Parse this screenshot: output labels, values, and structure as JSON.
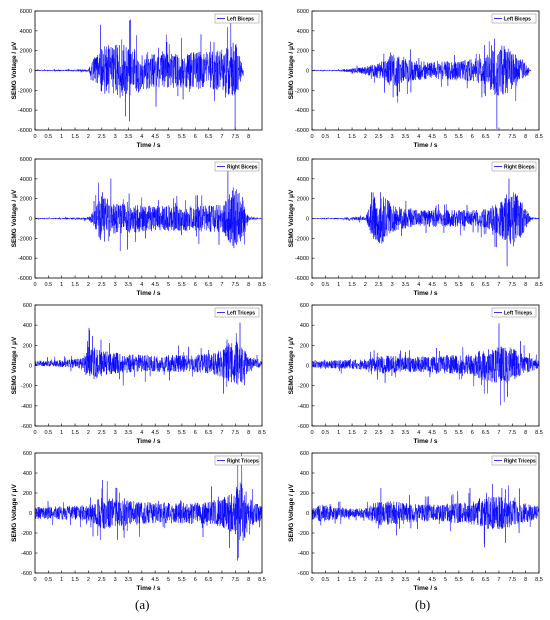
{
  "figure": {
    "column_labels": [
      "(a)",
      "(b)"
    ]
  },
  "chart_data": [
    {
      "type": "line",
      "column": "a",
      "row": 0,
      "series": [
        {
          "name": "Left Biceps",
          "color": "#0000ff"
        }
      ],
      "legend": "top-right",
      "xlabel": "Time / s",
      "ylabel": "SEMG Voltage / μV",
      "xlim": [
        0,
        8.5
      ],
      "ylim": [
        -6000,
        6000
      ],
      "xticks": [
        "0",
        "0.5",
        "1",
        "1.5",
        "2",
        "2.5",
        "3",
        "3.5",
        "4",
        "4.5",
        "5",
        "5.5",
        "6",
        "6.5",
        "7",
        "7.5",
        "8"
      ],
      "yticks": [
        "-6000",
        "-4000",
        "-2000",
        "0",
        "2000",
        "4000",
        "6000"
      ],
      "envelope": {
        "x": [
          0,
          1,
          2,
          2.2,
          2.5,
          3,
          3.5,
          4,
          4.5,
          5,
          5.5,
          6,
          6.5,
          7,
          7.5,
          7.8,
          8.5
        ],
        "amp": [
          60,
          80,
          150,
          1500,
          2800,
          3200,
          3000,
          2500,
          2000,
          2100,
          2000,
          2300,
          2300,
          2500,
          3500,
          300,
          50
        ]
      },
      "active": [
        0,
        7.8
      ]
    },
    {
      "type": "line",
      "column": "b",
      "row": 0,
      "series": [
        {
          "name": "Left Biceps",
          "color": "#0000ff"
        }
      ],
      "legend": "top-right",
      "xlabel": "Time / s",
      "ylabel": "SEMG Voltage / μV",
      "xlim": [
        0,
        8.5
      ],
      "ylim": [
        -6000,
        6000
      ],
      "xticks": [
        "0",
        "0.5",
        "1",
        "1.5",
        "2",
        "2.5",
        "3",
        "3.5",
        "4",
        "4.5",
        "5",
        "5.5",
        "6",
        "6.5",
        "7",
        "7.5",
        "8",
        "8.5"
      ],
      "yticks": [
        "-6000",
        "-4000",
        "-2000",
        "0",
        "2000",
        "4000",
        "6000"
      ],
      "envelope": {
        "x": [
          0,
          1,
          1.8,
          2.5,
          3,
          3.5,
          4,
          4.5,
          5,
          5.5,
          6,
          6.5,
          7,
          7.5,
          8,
          8.2
        ],
        "amp": [
          60,
          80,
          350,
          900,
          2000,
          1400,
          1200,
          1000,
          1100,
          1100,
          1400,
          1700,
          3500,
          2200,
          900,
          80
        ]
      },
      "active": [
        0,
        8.2
      ]
    },
    {
      "type": "line",
      "column": "a",
      "row": 1,
      "series": [
        {
          "name": "Right Biceps",
          "color": "#0000ff"
        }
      ],
      "legend": "top-right",
      "xlabel": "Time / s",
      "ylabel": "SEMG Voltage / μV",
      "xlim": [
        0,
        8.5
      ],
      "ylim": [
        -6000,
        6000
      ],
      "xticks": [
        "0",
        "0.5",
        "1",
        "1.5",
        "2",
        "2.5",
        "3",
        "3.5",
        "4",
        "4.5",
        "5",
        "5.5",
        "6",
        "6.5",
        "7",
        "7.5",
        "8",
        "8.5"
      ],
      "yticks": [
        "-6000",
        "-4000",
        "-2000",
        "0",
        "2000",
        "4000",
        "6000"
      ],
      "envelope": {
        "x": [
          0,
          1,
          2,
          2.2,
          2.5,
          3,
          3.5,
          4,
          4.5,
          5,
          5.5,
          6,
          6.5,
          7,
          7.3,
          7.5,
          7.8,
          8,
          8.5
        ],
        "amp": [
          60,
          80,
          150,
          900,
          3000,
          1800,
          1700,
          1600,
          1500,
          1500,
          1500,
          1500,
          1600,
          1600,
          3000,
          4000,
          2500,
          200,
          60
        ]
      },
      "active": [
        0,
        8.5
      ]
    },
    {
      "type": "line",
      "column": "b",
      "row": 1,
      "series": [
        {
          "name": "Right Biceps",
          "color": "#0000ff"
        }
      ],
      "legend": "top-right",
      "xlabel": "Time / s",
      "ylabel": "SEMG Voltage / μV",
      "xlim": [
        0,
        8.5
      ],
      "ylim": [
        -6000,
        6000
      ],
      "xticks": [
        "0",
        "0.5",
        "1",
        "1.5",
        "2",
        "2.5",
        "3",
        "3.5",
        "4",
        "4.5",
        "5",
        "5.5",
        "6",
        "6.5",
        "7",
        "7.5",
        "8",
        "8.5"
      ],
      "yticks": [
        "-6000",
        "-4000",
        "-2000",
        "0",
        "2000",
        "4000",
        "6000"
      ],
      "envelope": {
        "x": [
          0,
          1,
          2,
          2.3,
          2.6,
          3,
          3.5,
          4,
          4.5,
          5,
          5.5,
          6,
          6.5,
          7,
          7.5,
          7.8,
          8.2,
          8.5
        ],
        "amp": [
          60,
          80,
          250,
          2500,
          3200,
          1600,
          1200,
          1000,
          1000,
          1000,
          1000,
          1000,
          1100,
          2000,
          3500,
          2500,
          150,
          60
        ]
      },
      "active": [
        0,
        8.5
      ]
    },
    {
      "type": "line",
      "column": "a",
      "row": 2,
      "series": [
        {
          "name": "Left Triceps",
          "color": "#0000ff"
        }
      ],
      "legend": "top-right",
      "xlabel": "Time / s",
      "ylabel": "SEMG Voltage / μV",
      "xlim": [
        0,
        8.5
      ],
      "ylim": [
        -600,
        600
      ],
      "xticks": [
        "0",
        "0.5",
        "1",
        "1.5",
        "2",
        "2.5",
        "3",
        "3.5",
        "4",
        "4.5",
        "5",
        "5.5",
        "6",
        "6.5",
        "7",
        "7.5",
        "8",
        "8.5"
      ],
      "yticks": [
        "-600",
        "-400",
        "-200",
        "0",
        "200",
        "400",
        "600"
      ],
      "offset": 20,
      "envelope": {
        "x": [
          0,
          1,
          1.8,
          2,
          2.5,
          3,
          3.5,
          4,
          4.5,
          5,
          5.5,
          6,
          6.5,
          7,
          7.5,
          7.8,
          8,
          8.5
        ],
        "amp": [
          30,
          40,
          60,
          220,
          150,
          130,
          110,
          100,
          100,
          100,
          100,
          100,
          120,
          160,
          280,
          220,
          80,
          40
        ]
      },
      "active": [
        0,
        8.5
      ]
    },
    {
      "type": "line",
      "column": "b",
      "row": 2,
      "series": [
        {
          "name": "Left Triceps",
          "color": "#0000ff"
        }
      ],
      "legend": "top-right",
      "xlabel": "Time / s",
      "ylabel": "SEMG Voltage / μV",
      "xlim": [
        0,
        8.5
      ],
      "ylim": [
        -600,
        600
      ],
      "xticks": [
        "0",
        "0.5",
        "1",
        "1.5",
        "2",
        "2.5",
        "3",
        "3.5",
        "4",
        "4.5",
        "5",
        "5.5",
        "6",
        "6.5",
        "7",
        "7.5",
        "8",
        "8.5"
      ],
      "yticks": [
        "-600",
        "-400",
        "-200",
        "0",
        "200",
        "400",
        "600"
      ],
      "offset": 10,
      "envelope": {
        "x": [
          0,
          1,
          2,
          2.5,
          3,
          3.5,
          4,
          4.5,
          5,
          5.5,
          6,
          6.5,
          7,
          7.5,
          8,
          8.5
        ],
        "amp": [
          40,
          50,
          60,
          110,
          100,
          90,
          90,
          90,
          110,
          110,
          120,
          200,
          220,
          200,
          100,
          50
        ]
      },
      "active": [
        0,
        8.5
      ]
    },
    {
      "type": "line",
      "column": "a",
      "row": 3,
      "series": [
        {
          "name": "Right Triceps",
          "color": "#0000ff"
        }
      ],
      "legend": "top-right",
      "xlabel": "Time / s",
      "ylabel": "SEMG Voltage / μV",
      "xlim": [
        0,
        8.5
      ],
      "ylim": [
        -600,
        600
      ],
      "xticks": [
        "0",
        "0.5",
        "1",
        "1.5",
        "2",
        "2.5",
        "3",
        "3.5",
        "4",
        "4.5",
        "5",
        "5.5",
        "6",
        "6.5",
        "7",
        "7.5",
        "8",
        "8.5"
      ],
      "yticks": [
        "-600",
        "-400",
        "-200",
        "0",
        "200",
        "400",
        "600"
      ],
      "offset": 0,
      "envelope": {
        "x": [
          0,
          1,
          2,
          2.5,
          3,
          3.5,
          4,
          4.5,
          5,
          5.5,
          6,
          6.5,
          7,
          7.5,
          7.8,
          8,
          8.5
        ],
        "amp": [
          70,
          80,
          90,
          200,
          170,
          150,
          130,
          120,
          120,
          120,
          120,
          140,
          170,
          250,
          380,
          180,
          80
        ]
      },
      "active": [
        0,
        8.5
      ]
    },
    {
      "type": "line",
      "column": "b",
      "row": 3,
      "series": [
        {
          "name": "Right Triceps",
          "color": "#0000ff"
        }
      ],
      "legend": "top-right",
      "xlabel": "Time / s",
      "ylabel": "SEMG Voltage / μV",
      "xlim": [
        0,
        8.5
      ],
      "ylim": [
        -600,
        600
      ],
      "xticks": [
        "0",
        "0.5",
        "1",
        "1.5",
        "2",
        "2.5",
        "3",
        "3.5",
        "4",
        "4.5",
        "5",
        "5.5",
        "6",
        "6.5",
        "7",
        "7.5",
        "8",
        "8.5"
      ],
      "yticks": [
        "-600",
        "-400",
        "-200",
        "0",
        "200",
        "400",
        "600"
      ],
      "offset": 0,
      "envelope": {
        "x": [
          0,
          0.5,
          1,
          1.5,
          2,
          2.5,
          3,
          3.5,
          4,
          4.5,
          5,
          5.5,
          6,
          6.5,
          7,
          7.5,
          8,
          8.5
        ],
        "amp": [
          90,
          100,
          70,
          50,
          60,
          150,
          140,
          120,
          100,
          100,
          110,
          120,
          150,
          200,
          200,
          160,
          110,
          80
        ]
      },
      "active": [
        0,
        8.5
      ]
    }
  ]
}
